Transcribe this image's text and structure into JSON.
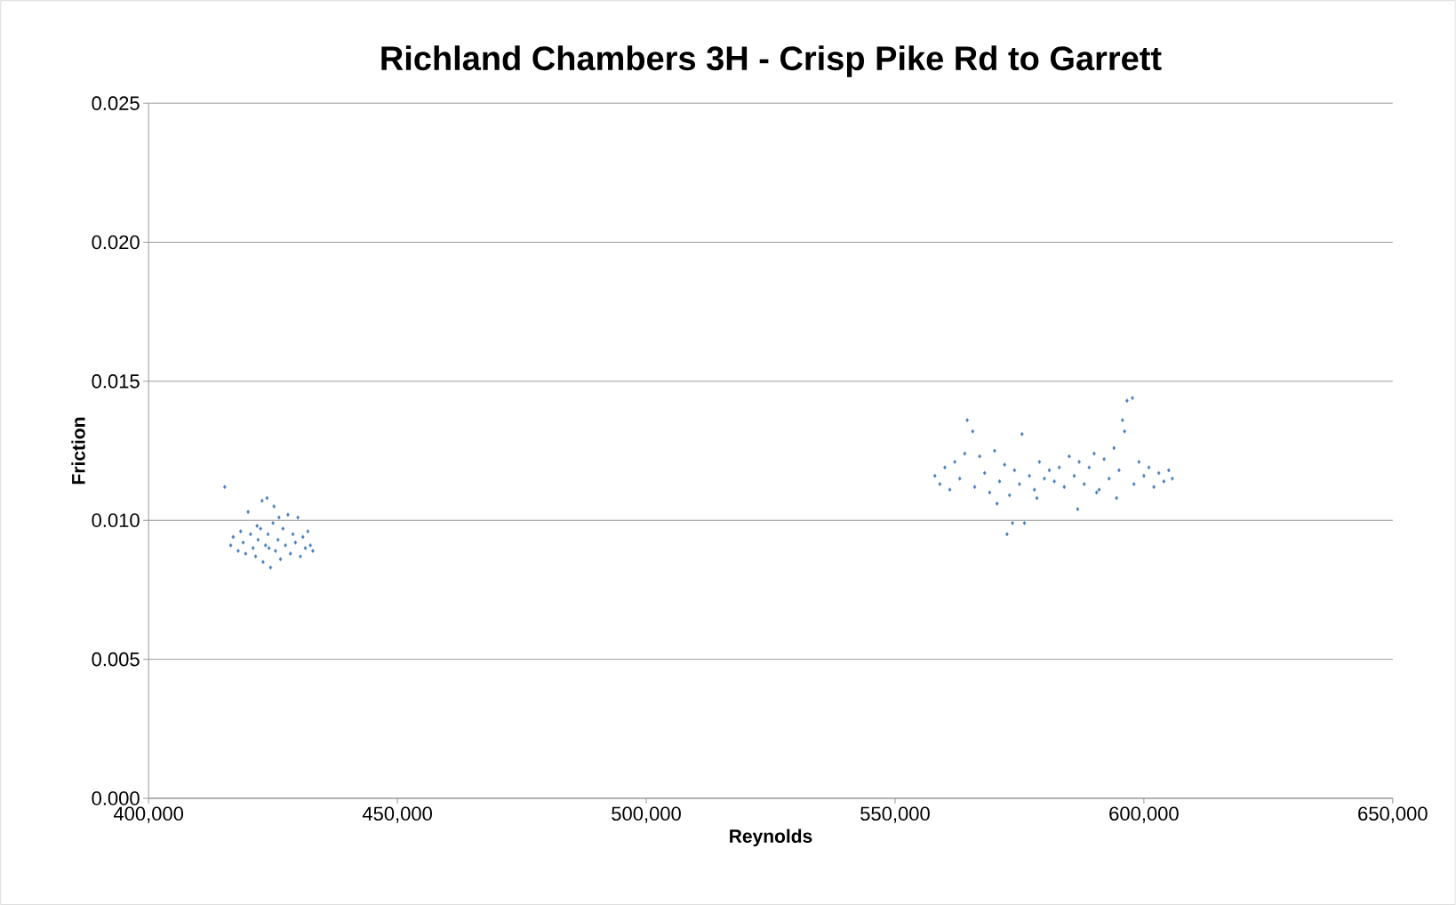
{
  "chart_data": {
    "type": "scatter",
    "title": "Richland Chambers 3H - Crisp Pike Rd to Garrett",
    "xlabel": "Reynolds",
    "ylabel": "Friction",
    "series": [
      {
        "color": "#4a7ebb",
        "x": [
          415300,
          416500,
          417000,
          418000,
          418500,
          419000,
          419500,
          420000,
          420500,
          421000,
          421500,
          422000,
          422500,
          422800,
          423000,
          423500,
          423800,
          424000,
          424500,
          425000,
          425200,
          425500,
          426000,
          426500,
          427000,
          427500,
          428000,
          428500,
          429000,
          429500,
          430000,
          430500,
          431000,
          431500,
          432000,
          432500,
          433000,
          426200,
          424200,
          421800,
          558000,
          559000,
          560000,
          561000,
          562000,
          563000,
          564500,
          565600,
          566000,
          567000,
          568000,
          569000,
          570000,
          571000,
          572000,
          572500,
          573000,
          573600,
          574000,
          575000,
          575500,
          576000,
          577000,
          578000,
          579000,
          580000,
          581000,
          582000,
          583000,
          584000,
          585000,
          586000,
          586700,
          587000,
          588000,
          589000,
          590000,
          591000,
          592000,
          593000,
          594000,
          595000,
          595700,
          596100,
          596600,
          597700,
          598000,
          599000,
          600000,
          601000,
          602000,
          603000,
          604000,
          605000,
          605700,
          570500,
          578500,
          590500,
          594500,
          564000
        ],
        "values": [
          0.0112,
          0.0091,
          0.0094,
          0.0089,
          0.0096,
          0.0092,
          0.0088,
          0.0103,
          0.0095,
          0.009,
          0.0087,
          0.0093,
          0.0097,
          0.0107,
          0.0085,
          0.0091,
          0.0108,
          0.0095,
          0.0083,
          0.0099,
          0.0105,
          0.0089,
          0.0093,
          0.0086,
          0.0097,
          0.0091,
          0.0102,
          0.0088,
          0.0095,
          0.0092,
          0.0101,
          0.0087,
          0.0094,
          0.009,
          0.0096,
          0.0091,
          0.0089,
          0.0101,
          0.009,
          0.0098,
          0.0116,
          0.0113,
          0.0119,
          0.0111,
          0.0121,
          0.0115,
          0.0136,
          0.0132,
          0.0112,
          0.0123,
          0.0117,
          0.011,
          0.0125,
          0.0114,
          0.012,
          0.0095,
          0.0109,
          0.0099,
          0.0118,
          0.0113,
          0.0131,
          0.0099,
          0.0116,
          0.0111,
          0.0121,
          0.0115,
          0.0118,
          0.0114,
          0.0119,
          0.0112,
          0.0123,
          0.0116,
          0.0104,
          0.0121,
          0.0113,
          0.0119,
          0.0124,
          0.0111,
          0.0122,
          0.0115,
          0.0126,
          0.0118,
          0.0136,
          0.0132,
          0.0143,
          0.0144,
          0.0113,
          0.0121,
          0.0116,
          0.0119,
          0.0112,
          0.0117,
          0.0114,
          0.0118,
          0.0115,
          0.0106,
          0.0108,
          0.011,
          0.0108,
          0.0124
        ]
      }
    ],
    "marker": "diamond",
    "xlim": [
      400000,
      650000
    ],
    "xticks": [
      {
        "value": 400000,
        "label": "400,000"
      },
      {
        "value": 450000,
        "label": "450,000"
      },
      {
        "value": 500000,
        "label": "500,000"
      },
      {
        "value": 550000,
        "label": "550,000"
      },
      {
        "value": 600000,
        "label": "600,000"
      },
      {
        "value": 650000,
        "label": "650,000"
      }
    ],
    "ylim": [
      0,
      0.025
    ],
    "yticks": [
      {
        "value": 0,
        "label": "0.000"
      },
      {
        "value": 0.005,
        "label": "0.005"
      },
      {
        "value": 0.01,
        "label": "0.010"
      },
      {
        "value": 0.015,
        "label": "0.015"
      },
      {
        "value": 0.02,
        "label": "0.020"
      },
      {
        "value": 0.025,
        "label": "0.025"
      }
    ],
    "grid": "y"
  }
}
